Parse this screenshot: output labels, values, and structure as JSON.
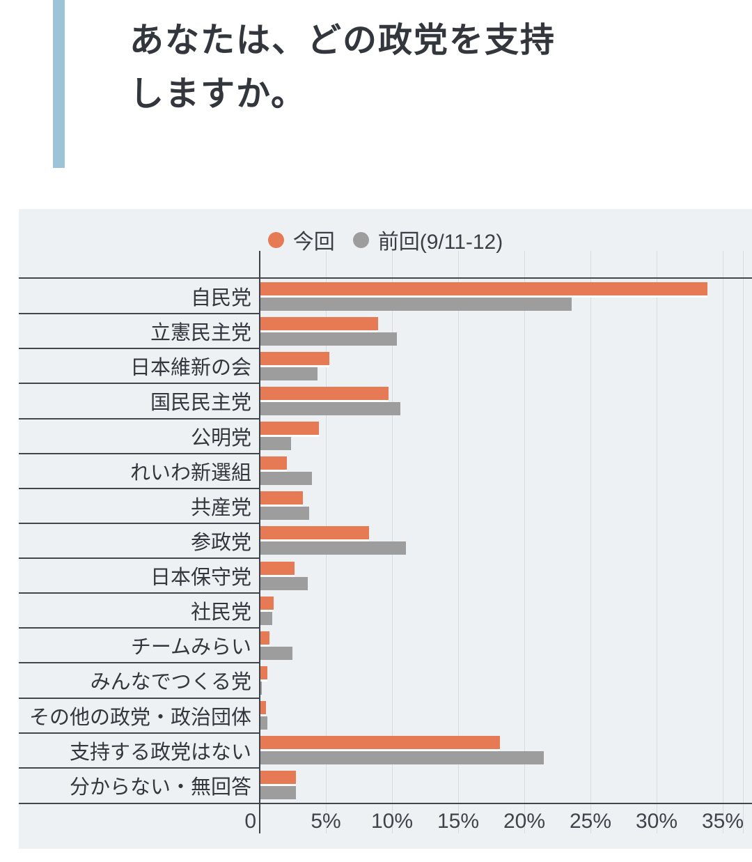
{
  "title": {
    "line1": "あなたは、どの政党を支持",
    "line2": "しますか。"
  },
  "legend": {
    "items": [
      {
        "label": "今回",
        "color": "#e57a54"
      },
      {
        "label": "前回(9/11-12)",
        "color": "#9d9d9d"
      }
    ]
  },
  "colors": {
    "accent": "#9cc3d7",
    "panel_background": "#edf1f4",
    "current_series": "#e57a54",
    "previous_series": "#9d9d9d",
    "gridline": "#d6dce1",
    "axis": "#3c4148",
    "text": "#33373d"
  },
  "chart_data": {
    "type": "bar",
    "orientation": "horizontal",
    "title": "あなたは、どの政党を支持しますか。",
    "categories": [
      "自民党",
      "立憲民主党",
      "日本維新の会",
      "国民民主党",
      "公明党",
      "れいわ新選組",
      "共産党",
      "参政党",
      "日本保守党",
      "社民党",
      "チームみらい",
      "みんなでつくる党",
      "その他の政党・政治団体",
      "支持する政党はない",
      "分からない・無回答"
    ],
    "series": [
      {
        "name": "今回",
        "color": "#e57a54",
        "values": [
          33.8,
          8.9,
          5.2,
          9.7,
          4.4,
          2.0,
          3.2,
          8.2,
          2.6,
          1.0,
          0.7,
          0.5,
          0.4,
          18.1,
          2.7
        ]
      },
      {
        "name": "前回(9/11-12)",
        "color": "#9d9d9d",
        "values": [
          23.5,
          10.3,
          4.3,
          10.6,
          2.3,
          3.9,
          3.7,
          11.0,
          3.6,
          0.9,
          2.4,
          0.1,
          0.5,
          21.4,
          2.7
        ]
      }
    ],
    "value_unit": "%",
    "xlim": [
      0,
      36.5
    ],
    "x_ticks": [
      0,
      5,
      10,
      15,
      20,
      25,
      30,
      35
    ],
    "x_tick_labels": [
      "0",
      "5%",
      "10%",
      "15%",
      "20%",
      "25%",
      "30%",
      "35%"
    ],
    "grid": true,
    "legend_position": "top"
  }
}
